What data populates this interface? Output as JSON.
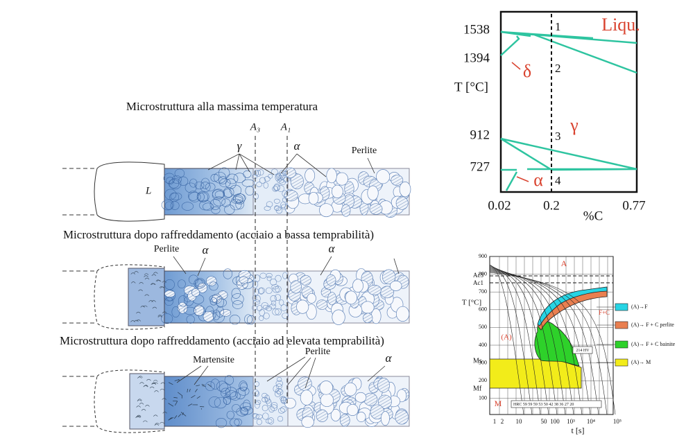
{
  "left": {
    "titles": [
      "Microstruttura alla massima temperatura",
      "Microstruttura dopo raffreddamento (acciaio a bassa temprabilità)",
      "Microstruttura dopo raffreddamento (acciaio ad elevata temprabilità)"
    ],
    "lines": [
      "A₃",
      "A₁"
    ],
    "bar1": {
      "liquid": "L",
      "gamma": "γ",
      "alpha": "α",
      "perlite": "Perlite"
    },
    "bar2": {
      "perlite": "Perlite",
      "alpha1": "α",
      "alpha2": "α"
    },
    "bar3": {
      "martensite": "Martensite",
      "perlite": "Perlite",
      "alpha": "α"
    }
  },
  "phase": {
    "yticks": [
      "1538",
      "1394",
      "912",
      "727"
    ],
    "ylabel": "T [°C]",
    "xticks": [
      "0.02",
      "0.2",
      "0.77"
    ],
    "xlabel": "%C",
    "points": [
      "1",
      "2",
      "3",
      "4"
    ],
    "regions": {
      "liquid": "Liqu.",
      "delta": "δ",
      "gamma": "γ",
      "alpha": "α"
    }
  },
  "cct": {
    "yticks": [
      "900",
      "800",
      "700",
      "600",
      "500",
      "400",
      "300",
      "200",
      "100"
    ],
    "xticks": [
      "1",
      "2",
      "10",
      "50",
      "100",
      "10³",
      "10⁴",
      "10⁵"
    ],
    "ylabel": "T [°C]",
    "xlabel": "t [s]",
    "marks": {
      "austenite": "A",
      "ac3": "Ac3",
      "ac1": "Ac1",
      "ms": "Ms",
      "mf": "Mf",
      "martensite": "M",
      "a_region": "(A)",
      "fc": "F+C",
      "hv": "214 HV",
      "hrc": "HRC  59  59 59 53 50 42 38 36 27  20"
    },
    "legend": [
      "(A)→F",
      "(A)→ F + C perlite",
      "(A)→ F + C bainite",
      "(A)→ M"
    ]
  }
}
